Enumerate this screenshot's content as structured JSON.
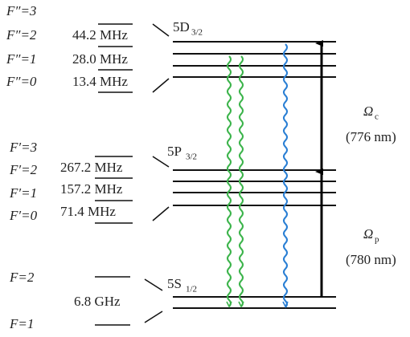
{
  "hyperfine_labels": [
    "F″=3",
    "F″=2",
    "F″=1",
    "F″=0",
    "F′=3",
    "F′=2",
    "F′=1",
    "F′=0",
    "F=2",
    "F=1"
  ],
  "splittings": [
    "44.2 MHz",
    "28.0 MHz",
    "13.4 MHz",
    "267.2 MHz",
    "157.2 MHz",
    "71.4 MHz",
    "6.8 GHz"
  ],
  "states": [
    {
      "name": "5D",
      "sub": "3/2"
    },
    {
      "name": "5P",
      "sub": "3/2"
    },
    {
      "name": "5S",
      "sub": "1/2"
    }
  ],
  "lasers": [
    {
      "symbol": "Ω",
      "sub": "c",
      "wavelength": "(776 nm)"
    },
    {
      "symbol": "Ω",
      "sub": "p",
      "wavelength": "(780 nm)"
    }
  ]
}
